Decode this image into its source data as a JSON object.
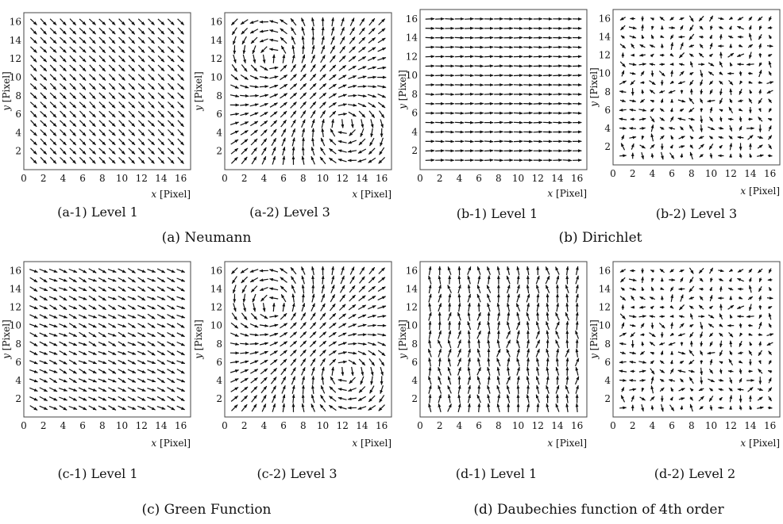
{
  "figure": {
    "axis_tick_labels": [
      "0",
      "2",
      "4",
      "6",
      "8",
      "10",
      "12",
      "14",
      "16"
    ],
    "y_tick_labels": [
      "2",
      "4",
      "6",
      "8",
      "10",
      "12",
      "14",
      "16"
    ],
    "x_label_var": "x",
    "x_label_unit": "[Pixel]",
    "y_label_var": "y",
    "y_label_unit": "[Pixel]",
    "panels": [
      {
        "id": "a1",
        "caption": "(a-1) Level 1",
        "pattern": "uniform"
      },
      {
        "id": "a2",
        "caption": "(a-2) Level 3",
        "pattern": "vortex"
      },
      {
        "id": "b1",
        "caption": "(b-1) Level 1",
        "pattern": "horizontal"
      },
      {
        "id": "b2",
        "caption": "(b-2) Level 3",
        "pattern": "sparse"
      },
      {
        "id": "c1",
        "caption": "(c-1) Level 1",
        "pattern": "diagonal"
      },
      {
        "id": "c2",
        "caption": "(c-2) Level 3",
        "pattern": "vortex"
      },
      {
        "id": "d1",
        "caption": "(d-1) Level 1",
        "pattern": "vertical"
      },
      {
        "id": "d2",
        "caption": "(d-2) Level 2",
        "pattern": "sparse"
      }
    ],
    "groups": [
      {
        "id": "a",
        "label": "(a) Neumann"
      },
      {
        "id": "b",
        "label": "(b) Dirichlet"
      },
      {
        "id": "c",
        "label": "(c) Green Function"
      },
      {
        "id": "d",
        "label": "(d) Daubechies function of 4th order"
      }
    ]
  }
}
